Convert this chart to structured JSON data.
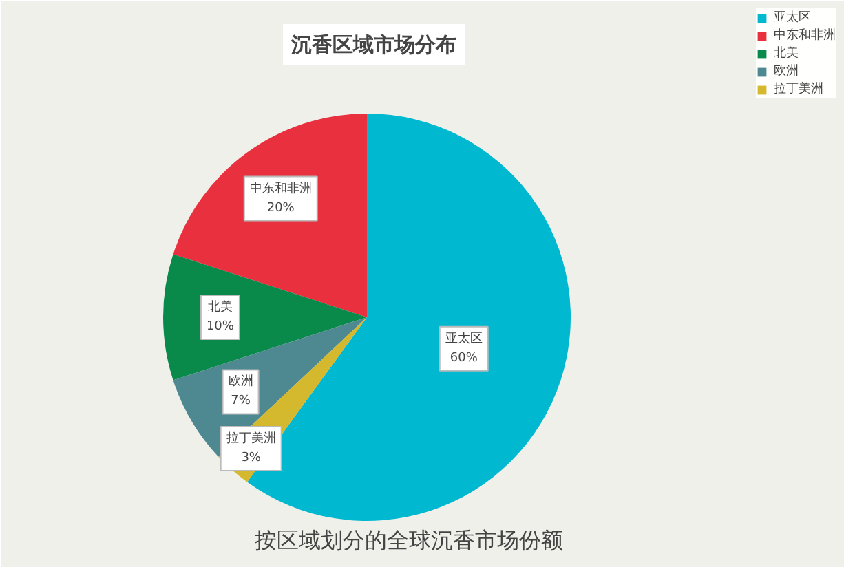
{
  "chart_data": {
    "type": "pie",
    "title": "沉香区域市场分布",
    "categories": [
      "亚太区",
      "中东和非洲",
      "北美",
      "欧洲",
      "拉丁美洲"
    ],
    "values": [
      60,
      20,
      10,
      7,
      3
    ],
    "value_labels": [
      "60%",
      "20%",
      "10%",
      "7%",
      "3%"
    ],
    "colors": [
      "#00b8d0",
      "#e8303f",
      "#0a8a4a",
      "#4e8890",
      "#d4b82e"
    ],
    "legend": "top right",
    "annotations": [
      "按区域划分的全球沉香市场份额"
    ]
  }
}
